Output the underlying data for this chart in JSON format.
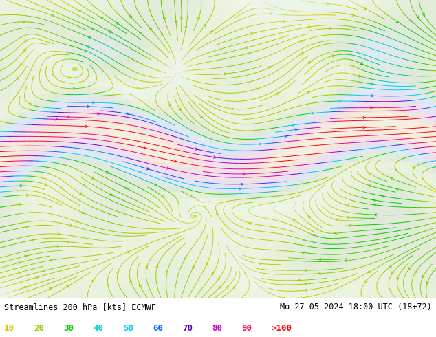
{
  "title_left": "Streamlines 200 hPa [kts] ECMWF",
  "title_right": "Mo 27-05-2024 18:00 UTC (18+72)",
  "legend_values": [
    "10",
    "20",
    "30",
    "40",
    "50",
    "60",
    "70",
    "80",
    "90",
    ">100"
  ],
  "legend_colors": [
    "#cccc00",
    "#99cc00",
    "#00cc00",
    "#00cccc",
    "#00ccff",
    "#0066ff",
    "#6600cc",
    "#cc00cc",
    "#ff0066",
    "#ff0000"
  ],
  "background_color": "#ffffff",
  "fig_width": 6.34,
  "fig_height": 4.9,
  "dpi": 100,
  "colormap_colors": [
    "#e0f0e0",
    "#cccc00",
    "#99cc00",
    "#00cc00",
    "#00cccc",
    "#00ccff",
    "#0066ff",
    "#6600cc",
    "#cc00cc",
    "#ff0066",
    "#ff0000"
  ],
  "colormap_bounds": [
    0,
    10,
    20,
    30,
    40,
    50,
    60,
    70,
    80,
    90,
    100
  ]
}
